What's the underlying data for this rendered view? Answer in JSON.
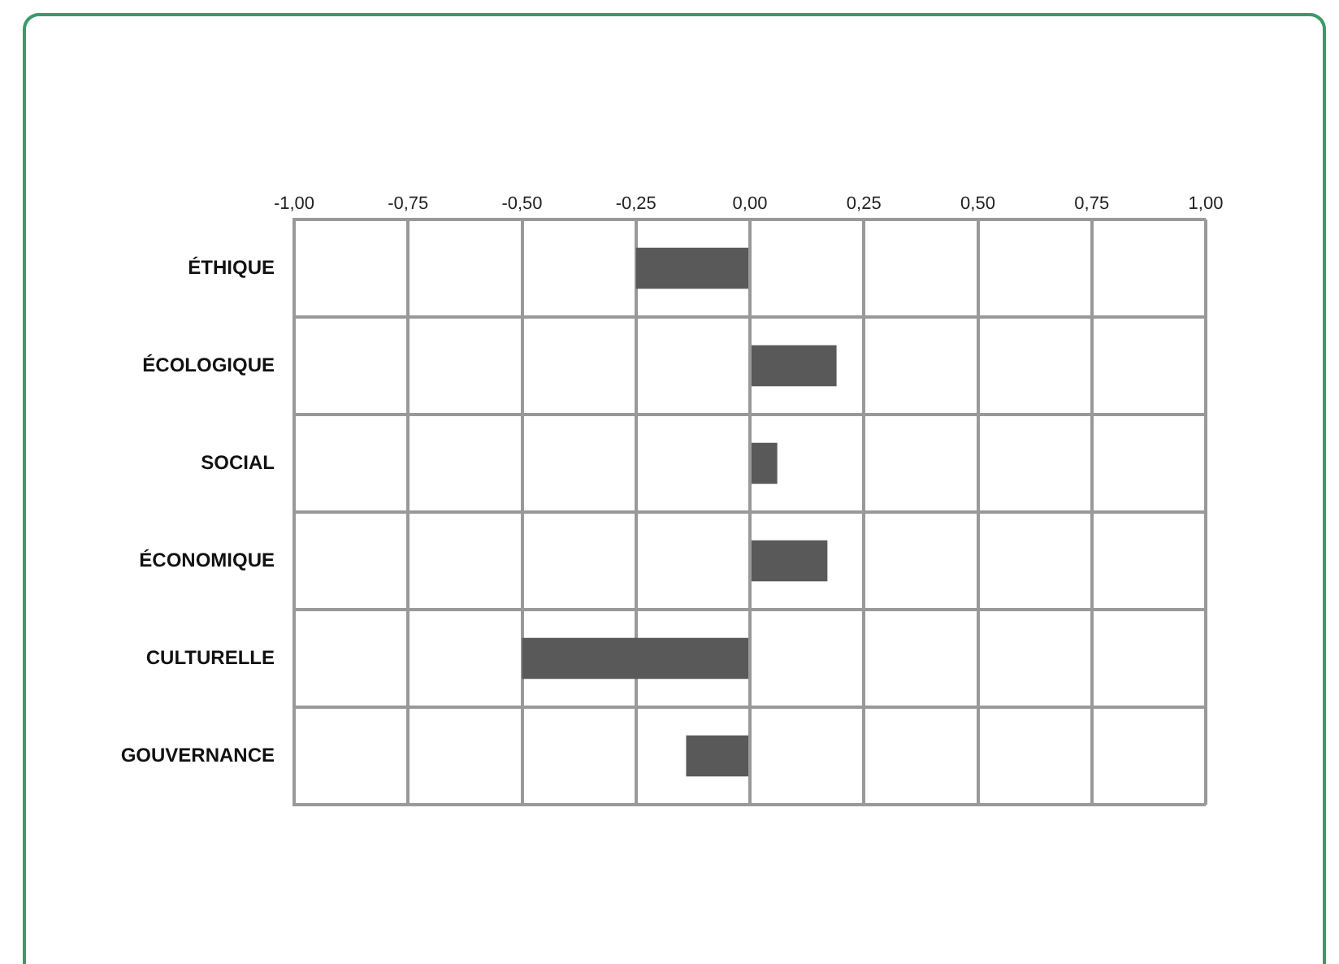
{
  "chart_data": {
    "type": "bar",
    "orientation": "horizontal",
    "categories": [
      "ÉTHIQUE",
      "ÉCOLOGIQUE",
      "SOCIAL",
      "ÉCONOMIQUE",
      "CULTURELLE",
      "GOUVERNANCE"
    ],
    "values": [
      -0.25,
      0.19,
      0.06,
      0.17,
      -0.5,
      -0.14
    ],
    "color": "#595959",
    "xlim": [
      -1,
      1
    ],
    "xticks": [
      {
        "value": -1,
        "label": "-1,00"
      },
      {
        "value": -0.75,
        "label": "-0,75"
      },
      {
        "value": -0.5,
        "label": "-0,50"
      },
      {
        "value": -0.25,
        "label": "-0,25"
      },
      {
        "value": 0,
        "label": "0,00"
      },
      {
        "value": 0.25,
        "label": "0,25"
      },
      {
        "value": 0.5,
        "label": "0,50"
      },
      {
        "value": 0.75,
        "label": "0,75"
      },
      {
        "value": 1,
        "label": "1,00"
      }
    ],
    "grid": true,
    "legend": false
  }
}
